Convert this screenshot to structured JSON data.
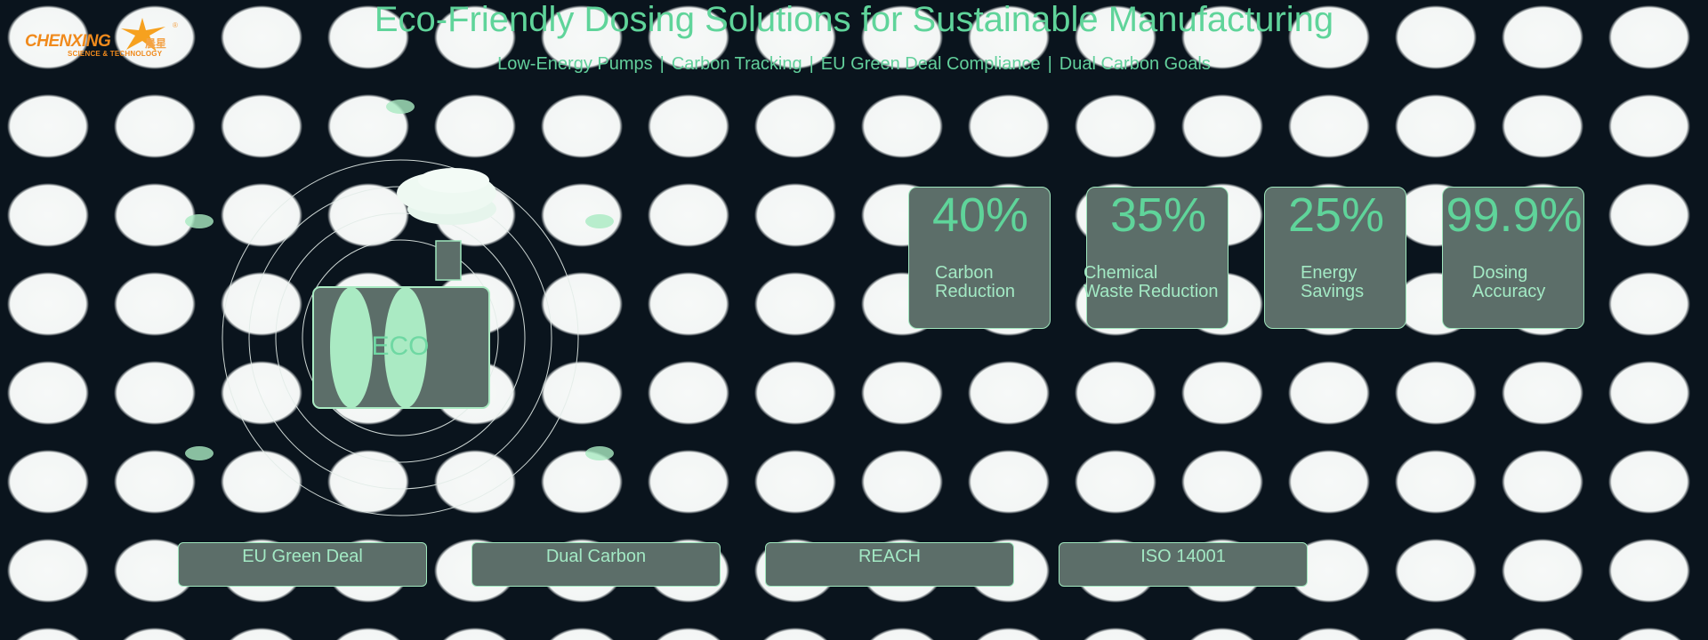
{
  "logo": {
    "name": "CHENXING",
    "tagline": "SCIENCE & TECHNOLOGY",
    "chinese": "晨星",
    "registered": "®"
  },
  "header": {
    "title": "Eco-Friendly Dosing Solutions for Sustainable Manufacturing",
    "subtitle_items": [
      "Low-Energy Pumps",
      "Carbon Tracking",
      "EU Green Deal Compliance",
      "Dual Carbon Goals"
    ],
    "separator": "|"
  },
  "illustration": {
    "label": "ECO"
  },
  "stats": [
    {
      "value": "40%",
      "label_line1": "Carbon",
      "label_line2": "Reduction"
    },
    {
      "value": "35%",
      "label_line1": "Chemical",
      "label_line2": "Waste Reduction"
    },
    {
      "value": "25%",
      "label_line1": "Energy",
      "label_line2": "Savings"
    },
    {
      "value": "99.9%",
      "label_line1": "Dosing",
      "label_line2": "Accuracy"
    }
  ],
  "badges": [
    {
      "label": "EU Green Deal"
    },
    {
      "label": "Dual Carbon"
    },
    {
      "label": "REACH"
    },
    {
      "label": "ISO 14001"
    }
  ],
  "colors": {
    "background": "#0a141d",
    "accent": "#5fd49a",
    "card": "#5c6e69",
    "card_border": "#9fe6bd",
    "logo": "#f08a1c"
  }
}
